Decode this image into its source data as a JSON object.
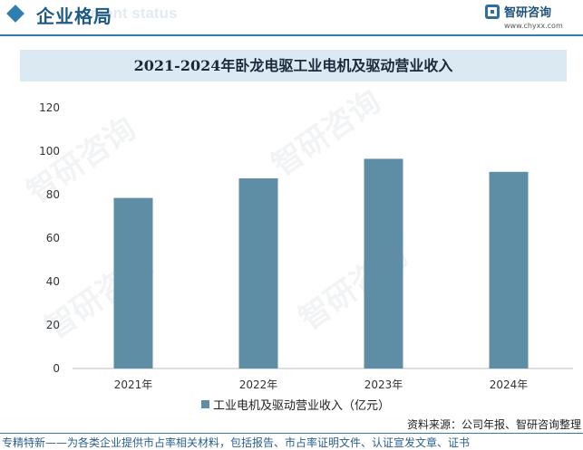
{
  "header": {
    "title": "企业格局",
    "ghost_text": "ment status",
    "brand_name": "智研咨询",
    "brand_url": "www.chyxx.com",
    "accent_color": "#2e7fb0"
  },
  "watermark": "智研咨询",
  "chart_data": {
    "type": "bar",
    "title": "2021-2024年卧龙电驱工业电机及驱动营业收入",
    "categories": [
      "2021年",
      "2022年",
      "2023年",
      "2024年"
    ],
    "series": [
      {
        "name": "工业电机及驱动营业收入（亿元）",
        "values": [
          78.5,
          87.5,
          96.5,
          90.5
        ],
        "color": "#5e8ea6"
      }
    ],
    "ylim": [
      0,
      120
    ],
    "yticks": [
      "0",
      "20",
      "40",
      "60",
      "80",
      "100",
      "120"
    ],
    "grid": false,
    "legend_position": "bottom"
  },
  "source": "资料来源：公司年报、智研咨询整理",
  "footer": "专精特新——为各类企业提供市占率相关材料，包括报告、市占率证明文件、认证宣发文章、证书"
}
